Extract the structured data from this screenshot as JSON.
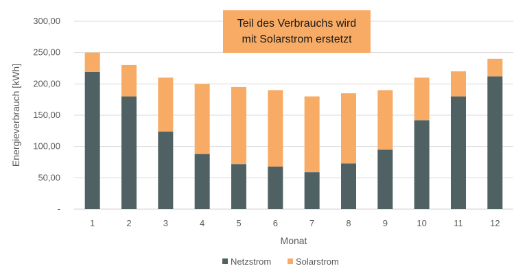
{
  "chart_data": {
    "type": "bar",
    "stacked": true,
    "title": "",
    "xlabel": "Monat",
    "ylabel": "Energieverbrauch [kWh]",
    "ylim": [
      0,
      300
    ],
    "yticks": [
      0,
      50,
      100,
      150,
      200,
      250,
      300
    ],
    "ytick_labels": [
      "-",
      "50,00",
      "100,00",
      "150,00",
      "200,00",
      "250,00",
      "300,00"
    ],
    "grid": true,
    "legend_position": "bottom",
    "categories": [
      "1",
      "2",
      "3",
      "4",
      "5",
      "6",
      "7",
      "8",
      "9",
      "10",
      "11",
      "12"
    ],
    "series": [
      {
        "name": "Netzstrom",
        "color": "#4F6163",
        "values": [
          219,
          180,
          124,
          88,
          72,
          68,
          59,
          73,
          95,
          142,
          180,
          212
        ]
      },
      {
        "name": "Solarstrom",
        "color": "#F8AB64",
        "values": [
          31,
          50,
          86,
          112,
          123,
          122,
          121,
          112,
          95,
          68,
          40,
          28
        ]
      }
    ],
    "annotation": {
      "lines": [
        "Teil des Verbrauchs wird",
        "mit Solarstrom erstetzt"
      ],
      "color": "#F8AB64"
    }
  }
}
